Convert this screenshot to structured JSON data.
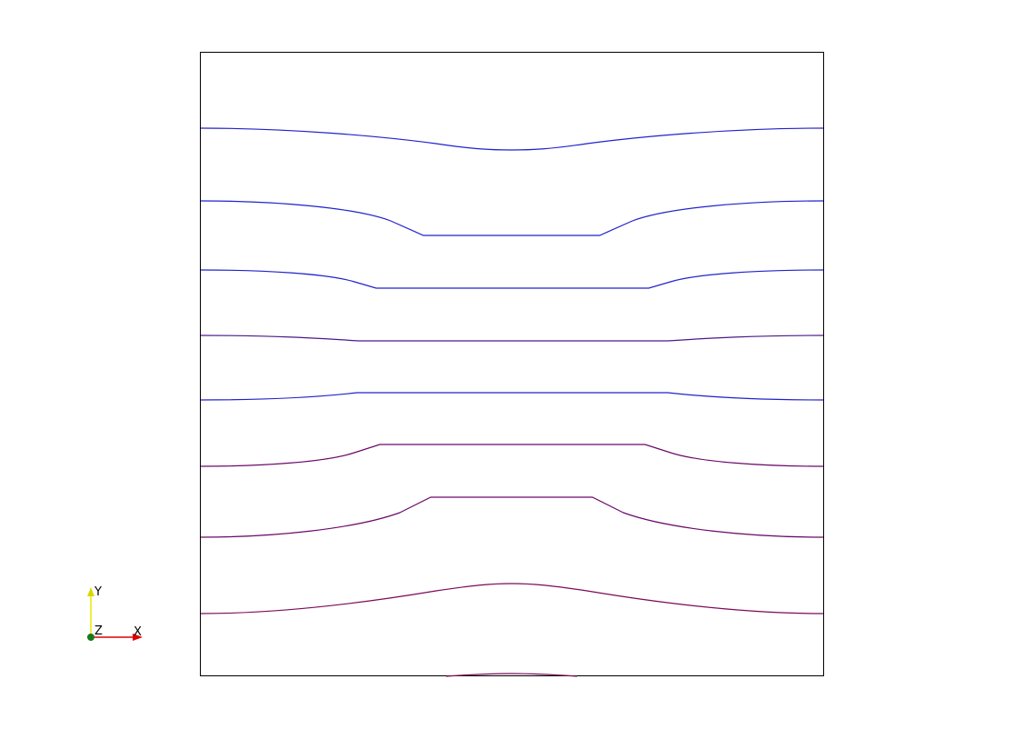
{
  "orientation_axes": {
    "x_label": "X",
    "y_label": "Y",
    "z_label": "Z",
    "x_color": "#e00000",
    "y_color": "#e8e800",
    "z_color": "#1a7a1a"
  },
  "contour_colors": {
    "upper": "#2222cc",
    "lower": "#b0003a",
    "frame": "#000000"
  },
  "contour_count": 9
}
